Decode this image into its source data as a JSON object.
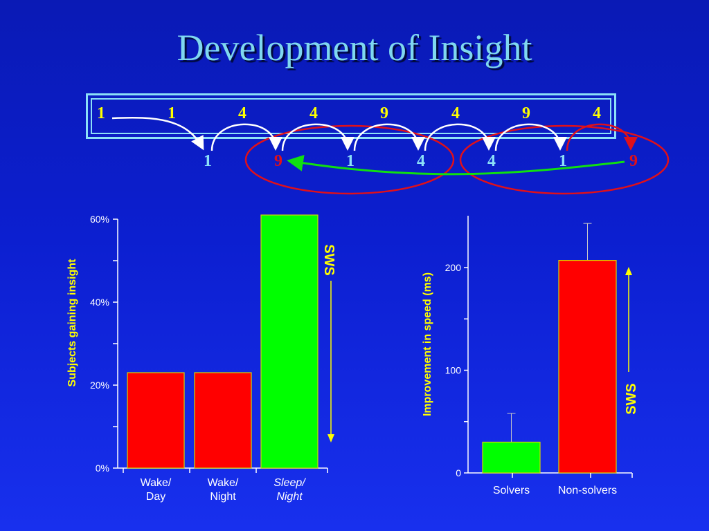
{
  "title": "Development of Insight",
  "sequence": {
    "top_row": [
      "1",
      "1",
      "4",
      "4",
      "9",
      "4",
      "9",
      "4"
    ],
    "bottom_row": [
      "1",
      "9",
      "1",
      "4",
      "4",
      "1",
      "9"
    ],
    "highlight_color": "#e0101a",
    "arrow_color": "#ffffff",
    "green_arrow_color": "#10e010"
  },
  "chart_data": [
    {
      "type": "bar",
      "categories": [
        "Wake/ Day",
        "Wake/ Night",
        "Sleep/ Night"
      ],
      "category_lines": [
        [
          "Wake/",
          "Day"
        ],
        [
          "Wake/",
          "Night"
        ],
        [
          "Sleep/",
          "Night"
        ]
      ],
      "category_italic": [
        false,
        false,
        true
      ],
      "values": [
        23,
        23,
        61
      ],
      "colors": [
        "#ff0000",
        "#ff0000",
        "#00ff00"
      ],
      "ylabel": "Subjects gaining insight",
      "ylim": [
        0,
        60
      ],
      "yticks": [
        0,
        20,
        40,
        60
      ],
      "ytick_labels": [
        "0%",
        "20%",
        "40%",
        "60%"
      ],
      "annotation": "SWS",
      "grid": false
    },
    {
      "type": "bar",
      "categories": [
        "Solvers",
        "Non-solvers"
      ],
      "values": [
        30,
        207
      ],
      "error_upper": [
        58,
        243
      ],
      "colors": [
        "#00ff00",
        "#ff0000"
      ],
      "ylabel": "Improvement in speed (ms)",
      "ylim": [
        0,
        250
      ],
      "yticks": [
        0,
        100,
        200
      ],
      "ytick_labels": [
        "0",
        "100",
        "200"
      ],
      "annotation": "SWS",
      "grid": false
    }
  ]
}
